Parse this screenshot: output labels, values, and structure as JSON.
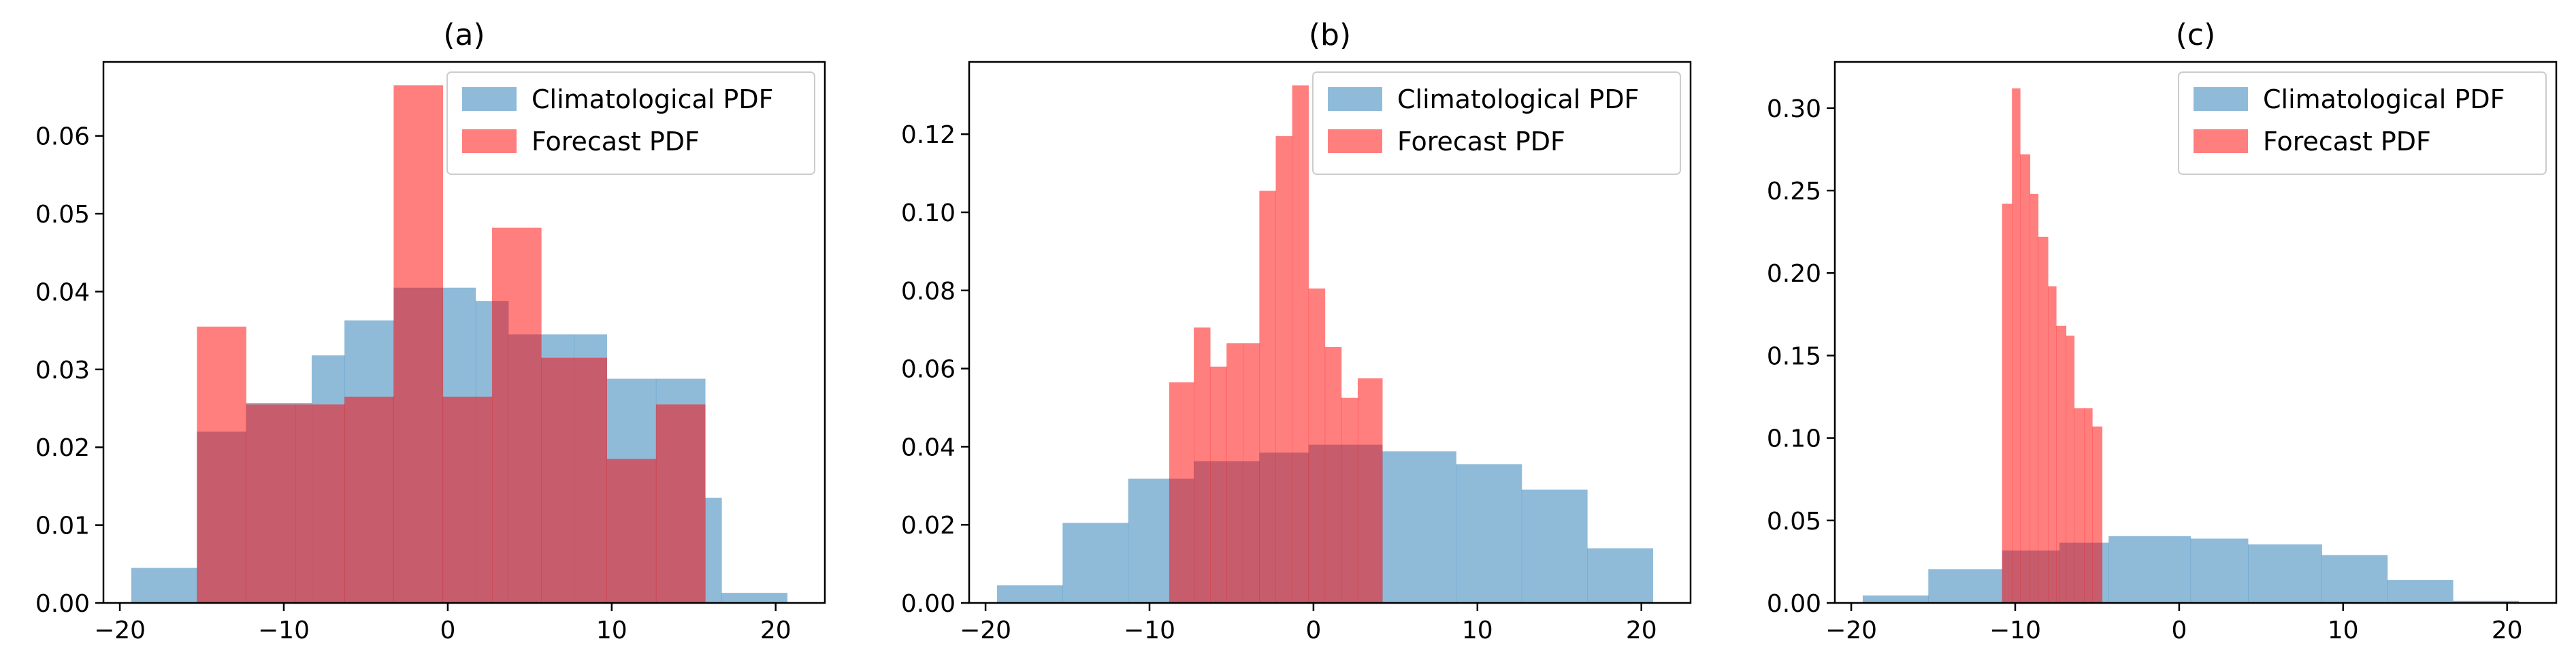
{
  "chart_data": [
    {
      "type": "histogram",
      "title": "(a)",
      "xlim": [
        -21,
        23
      ],
      "ylim": [
        0,
        0.0695
      ],
      "xticks": [
        -20,
        -10,
        0,
        10,
        20
      ],
      "xtick_labels": [
        "−20",
        "−10",
        "0",
        "10",
        "20"
      ],
      "yticks": [
        0,
        0.01,
        0.02,
        0.03,
        0.04,
        0.05,
        0.06
      ],
      "ytick_labels": [
        "0.00",
        "0.01",
        "0.02",
        "0.03",
        "0.04",
        "0.05",
        "0.06"
      ],
      "legend_position": "top-right",
      "series": [
        {
          "name": "Climatological PDF",
          "color": "#1f77b4",
          "opacity": 0.5,
          "bin_edges": [
            -19.3,
            -15.3,
            -12.3,
            -8.3,
            -6.3,
            -3.3,
            -0.3,
            1.7,
            3.7,
            7.7,
            9.7,
            12.7,
            15.7,
            16.7,
            20.7
          ],
          "values": [
            0.0045,
            0.022,
            0.0257,
            0.0318,
            0.0363,
            0.0405,
            0.0405,
            0.0388,
            0.0345,
            0.0345,
            0.0288,
            0.0288,
            0.0135,
            0.0013
          ]
        },
        {
          "name": "Forecast PDF",
          "color": "#ff0000",
          "opacity": 0.5,
          "bin_edges": [
            -15.3,
            -12.3,
            -9.3,
            -6.3,
            -3.3,
            -0.3,
            2.7,
            5.7,
            9.7,
            12.7,
            15.7
          ],
          "values": [
            0.0355,
            0.0255,
            0.0255,
            0.0265,
            0.0665,
            0.0265,
            0.0482,
            0.0315,
            0.0185,
            0.0255
          ]
        }
      ]
    },
    {
      "type": "histogram",
      "title": "(b)",
      "xlim": [
        -21,
        23
      ],
      "ylim": [
        0,
        0.1385
      ],
      "xticks": [
        -20,
        -10,
        0,
        10,
        20
      ],
      "xtick_labels": [
        "−20",
        "−10",
        "0",
        "10",
        "20"
      ],
      "yticks": [
        0,
        0.02,
        0.04,
        0.06,
        0.08,
        0.1,
        0.12
      ],
      "ytick_labels": [
        "0.00",
        "0.02",
        "0.04",
        "0.06",
        "0.08",
        "0.10",
        "0.12"
      ],
      "legend_position": "top-right",
      "series": [
        {
          "name": "Climatological PDF",
          "color": "#1f77b4",
          "opacity": 0.5,
          "bin_edges": [
            -19.3,
            -15.3,
            -11.3,
            -7.3,
            -3.3,
            -0.3,
            4.2,
            8.7,
            12.7,
            16.7,
            20.7
          ],
          "values": [
            0.0045,
            0.0205,
            0.0318,
            0.0363,
            0.0385,
            0.0405,
            0.0388,
            0.0355,
            0.029,
            0.014
          ]
        },
        {
          "name": "Forecast PDF",
          "color": "#ff0000",
          "opacity": 0.5,
          "bin_edges": [
            -8.8,
            -7.3,
            -6.3,
            -5.3,
            -4.3,
            -3.3,
            -2.3,
            -1.3,
            -0.3,
            0.7,
            1.7,
            2.7,
            4.2
          ],
          "values": [
            0.0565,
            0.0705,
            0.0605,
            0.0665,
            0.0665,
            0.1055,
            0.1195,
            0.1325,
            0.0805,
            0.0655,
            0.0525,
            0.0575
          ]
        }
      ]
    },
    {
      "type": "histogram",
      "title": "(c)",
      "xlim": [
        -21,
        23
      ],
      "ylim": [
        0,
        0.328
      ],
      "xticks": [
        -20,
        -10,
        0,
        10,
        20
      ],
      "xtick_labels": [
        "−20",
        "−10",
        "0",
        "10",
        "20"
      ],
      "yticks": [
        0,
        0.05,
        0.1,
        0.15,
        0.2,
        0.25,
        0.3
      ],
      "ytick_labels": [
        "0.00",
        "0.05",
        "0.10",
        "0.15",
        "0.20",
        "0.25",
        "0.30"
      ],
      "legend_position": "top-right",
      "series": [
        {
          "name": "Climatological PDF",
          "color": "#1f77b4",
          "opacity": 0.5,
          "bin_edges": [
            -19.3,
            -15.3,
            -10.8,
            -7.3,
            -4.3,
            0.7,
            4.2,
            8.7,
            12.7,
            16.7,
            20.7
          ],
          "values": [
            0.0045,
            0.0205,
            0.0318,
            0.0365,
            0.0405,
            0.039,
            0.0355,
            0.029,
            0.014,
            0.0013
          ]
        },
        {
          "name": "Forecast PDF",
          "color": "#ff0000",
          "opacity": 0.5,
          "bin_edges": [
            -10.8,
            -10.2,
            -9.7,
            -9.1,
            -8.6,
            -8.0,
            -7.5,
            -6.9,
            -6.4,
            -5.8,
            -5.3,
            -4.7
          ],
          "values": [
            0.242,
            0.312,
            0.272,
            0.248,
            0.222,
            0.192,
            0.168,
            0.162,
            0.118,
            0.118,
            0.107
          ]
        }
      ]
    }
  ]
}
